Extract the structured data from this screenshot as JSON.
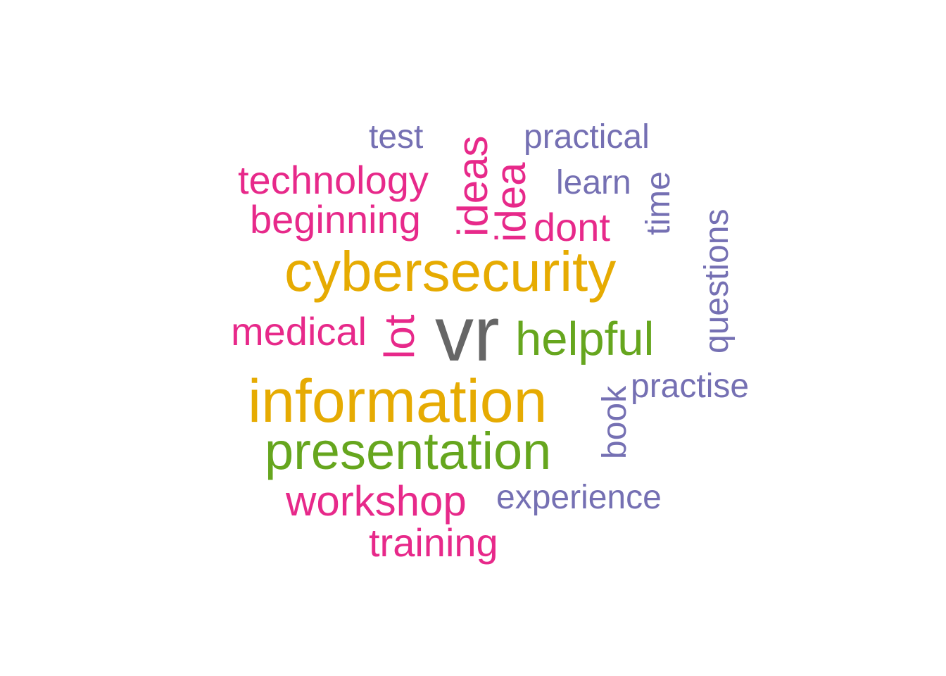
{
  "palette": {
    "gold": "#e6ab02",
    "green": "#66a61e",
    "magenta": "#e7298a",
    "purple": "#7570b3",
    "gray": "#666666"
  },
  "words": [
    {
      "text": "vr",
      "color": "gray",
      "orientation": "horizontal"
    },
    {
      "text": "information",
      "color": "gold",
      "orientation": "horizontal"
    },
    {
      "text": "cybersecurity",
      "color": "gold",
      "orientation": "horizontal"
    },
    {
      "text": "presentation",
      "color": "green",
      "orientation": "horizontal"
    },
    {
      "text": "helpful",
      "color": "green",
      "orientation": "horizontal"
    },
    {
      "text": "workshop",
      "color": "magenta",
      "orientation": "horizontal"
    },
    {
      "text": "technology",
      "color": "magenta",
      "orientation": "horizontal"
    },
    {
      "text": "beginning",
      "color": "magenta",
      "orientation": "horizontal"
    },
    {
      "text": "medical",
      "color": "magenta",
      "orientation": "horizontal"
    },
    {
      "text": "training",
      "color": "magenta",
      "orientation": "horizontal"
    },
    {
      "text": "dont",
      "color": "magenta",
      "orientation": "horizontal"
    },
    {
      "text": "ideas",
      "color": "magenta",
      "orientation": "vertical"
    },
    {
      "text": "idea",
      "color": "magenta",
      "orientation": "vertical"
    },
    {
      "text": "lot",
      "color": "magenta",
      "orientation": "vertical"
    },
    {
      "text": "test",
      "color": "purple",
      "orientation": "horizontal"
    },
    {
      "text": "practical",
      "color": "purple",
      "orientation": "horizontal"
    },
    {
      "text": "learn",
      "color": "purple",
      "orientation": "horizontal"
    },
    {
      "text": "practise",
      "color": "purple",
      "orientation": "horizontal"
    },
    {
      "text": "experience",
      "color": "purple",
      "orientation": "horizontal"
    },
    {
      "text": "time",
      "color": "purple",
      "orientation": "vertical"
    },
    {
      "text": "questions",
      "color": "purple",
      "orientation": "vertical"
    },
    {
      "text": "book",
      "color": "purple",
      "orientation": "vertical"
    }
  ]
}
